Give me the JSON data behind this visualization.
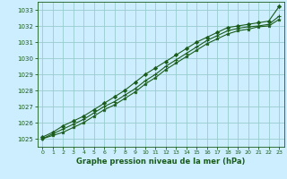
{
  "title": "Graphe pression niveau de la mer (hPa)",
  "bg_color": "#cceeff",
  "grid_color": "#99cccc",
  "line_color": "#1a5c1a",
  "xlim": [
    -0.5,
    23.5
  ],
  "ylim": [
    1024.5,
    1033.5
  ],
  "yticks": [
    1025,
    1026,
    1027,
    1028,
    1029,
    1030,
    1031,
    1032,
    1033
  ],
  "xticks": [
    0,
    1,
    2,
    3,
    4,
    5,
    6,
    7,
    8,
    9,
    10,
    11,
    12,
    13,
    14,
    15,
    16,
    17,
    18,
    19,
    20,
    21,
    22,
    23
  ],
  "series1": [
    1025.1,
    1025.4,
    1025.8,
    1026.1,
    1026.4,
    1026.8,
    1027.2,
    1027.6,
    1028.0,
    1028.5,
    1029.0,
    1029.4,
    1029.8,
    1030.2,
    1030.6,
    1031.0,
    1031.3,
    1031.6,
    1031.9,
    1032.0,
    1032.1,
    1032.2,
    1032.3,
    1033.2
  ],
  "series2": [
    1025.0,
    1025.3,
    1025.6,
    1025.9,
    1026.2,
    1026.6,
    1027.0,
    1027.3,
    1027.7,
    1028.1,
    1028.6,
    1029.0,
    1029.5,
    1029.9,
    1030.3,
    1030.7,
    1031.1,
    1031.4,
    1031.7,
    1031.85,
    1031.95,
    1032.0,
    1032.1,
    1032.6
  ],
  "series3": [
    1025.0,
    1025.2,
    1025.4,
    1025.7,
    1026.0,
    1026.4,
    1026.8,
    1027.1,
    1027.5,
    1027.9,
    1028.4,
    1028.8,
    1029.3,
    1029.7,
    1030.1,
    1030.5,
    1030.9,
    1031.2,
    1031.5,
    1031.7,
    1031.8,
    1031.95,
    1032.0,
    1032.4
  ]
}
